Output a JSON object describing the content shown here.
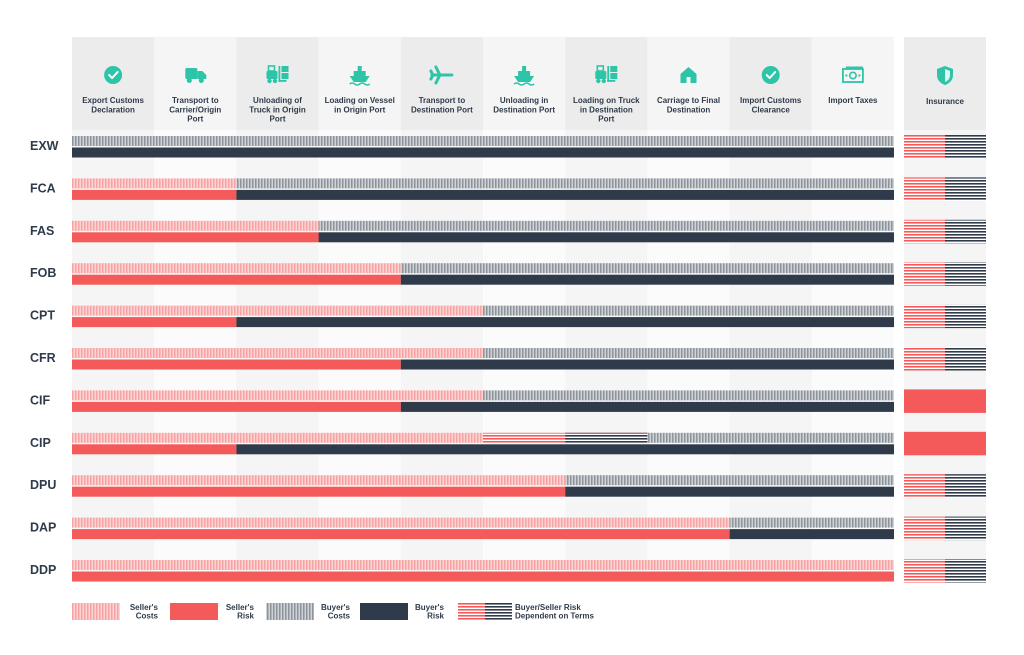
{
  "stages": [
    {
      "lines": [
        "Export Customs",
        "Declaration"
      ],
      "icon": "check-circle-icon"
    },
    {
      "lines": [
        "Transport to",
        "Carrier/Origin",
        "Port"
      ],
      "icon": "truck-icon"
    },
    {
      "lines": [
        "Unloading of",
        "Truck in Origin",
        "Port"
      ],
      "icon": "forklift-icon"
    },
    {
      "lines": [
        "Loading on Vessel",
        "in Origin Port"
      ],
      "icon": "ship-icon"
    },
    {
      "lines": [
        "Transport to",
        "Destination Port"
      ],
      "icon": "airplane-icon"
    },
    {
      "lines": [
        "Unloading in",
        "Destination Port"
      ],
      "icon": "ship-icon"
    },
    {
      "lines": [
        "Loading on Truck",
        "in Destination",
        "Port"
      ],
      "icon": "forklift-icon"
    },
    {
      "lines": [
        "Carriage to Final",
        "Destination"
      ],
      "icon": "house-icon"
    },
    {
      "lines": [
        "Import Customs",
        "Clearance"
      ],
      "icon": "check-circle-icon"
    },
    {
      "lines": [
        "Import Taxes"
      ],
      "icon": "banknote-icon"
    }
  ],
  "insurance_header": "Insurance",
  "incoterms": [
    {
      "term": "EXW",
      "seller_cost_stages": 0,
      "seller_risk_stages": 0,
      "dependent_cost_stages": 0,
      "insurance": "dependent"
    },
    {
      "term": "FCA",
      "seller_cost_stages": 2,
      "seller_risk_stages": 2,
      "dependent_cost_stages": 0,
      "insurance": "dependent"
    },
    {
      "term": "FAS",
      "seller_cost_stages": 3,
      "seller_risk_stages": 3,
      "dependent_cost_stages": 0,
      "insurance": "dependent"
    },
    {
      "term": "FOB",
      "seller_cost_stages": 4,
      "seller_risk_stages": 4,
      "dependent_cost_stages": 0,
      "insurance": "dependent"
    },
    {
      "term": "CPT",
      "seller_cost_stages": 5,
      "seller_risk_stages": 2,
      "dependent_cost_stages": 0,
      "insurance": "dependent"
    },
    {
      "term": "CFR",
      "seller_cost_stages": 5,
      "seller_risk_stages": 4,
      "dependent_cost_stages": 0,
      "insurance": "dependent"
    },
    {
      "term": "CIF",
      "seller_cost_stages": 5,
      "seller_risk_stages": 4,
      "dependent_cost_stages": 0,
      "insurance": "seller"
    },
    {
      "term": "CIP",
      "seller_cost_stages": 5,
      "seller_risk_stages": 2,
      "dependent_cost_stages": 2,
      "insurance": "seller"
    },
    {
      "term": "DPU",
      "seller_cost_stages": 6,
      "seller_risk_stages": 6,
      "dependent_cost_stages": 0,
      "insurance": "dependent"
    },
    {
      "term": "DAP",
      "seller_cost_stages": 8,
      "seller_risk_stages": 8,
      "dependent_cost_stages": 0,
      "insurance": "dependent"
    },
    {
      "term": "DDP",
      "seller_cost_stages": 10,
      "seller_risk_stages": 10,
      "dependent_cost_stages": 0,
      "insurance": "dependent"
    }
  ],
  "legend": [
    {
      "pattern": "seller-costs",
      "lines": [
        "Seller's",
        "Costs"
      ]
    },
    {
      "pattern": "seller-risk",
      "lines": [
        "Seller's",
        "Risk"
      ]
    },
    {
      "pattern": "buyer-costs",
      "lines": [
        "Buyer's",
        "Costs"
      ]
    },
    {
      "pattern": "buyer-risk",
      "lines": [
        "Buyer's",
        "Risk"
      ]
    },
    {
      "pattern": "dependent",
      "lines": [
        "Buyer/Seller Risk",
        "Dependent on Terms"
      ]
    }
  ],
  "colors": {
    "seller": "#f45a5a",
    "seller_light": "#f7a3a3",
    "buyer": "#2f3b4a",
    "buyer_light": "#a4a8ae",
    "accent": "#2ec4a7",
    "header_bg_a": "#ececec",
    "header_bg_b": "#f5f5f5"
  }
}
